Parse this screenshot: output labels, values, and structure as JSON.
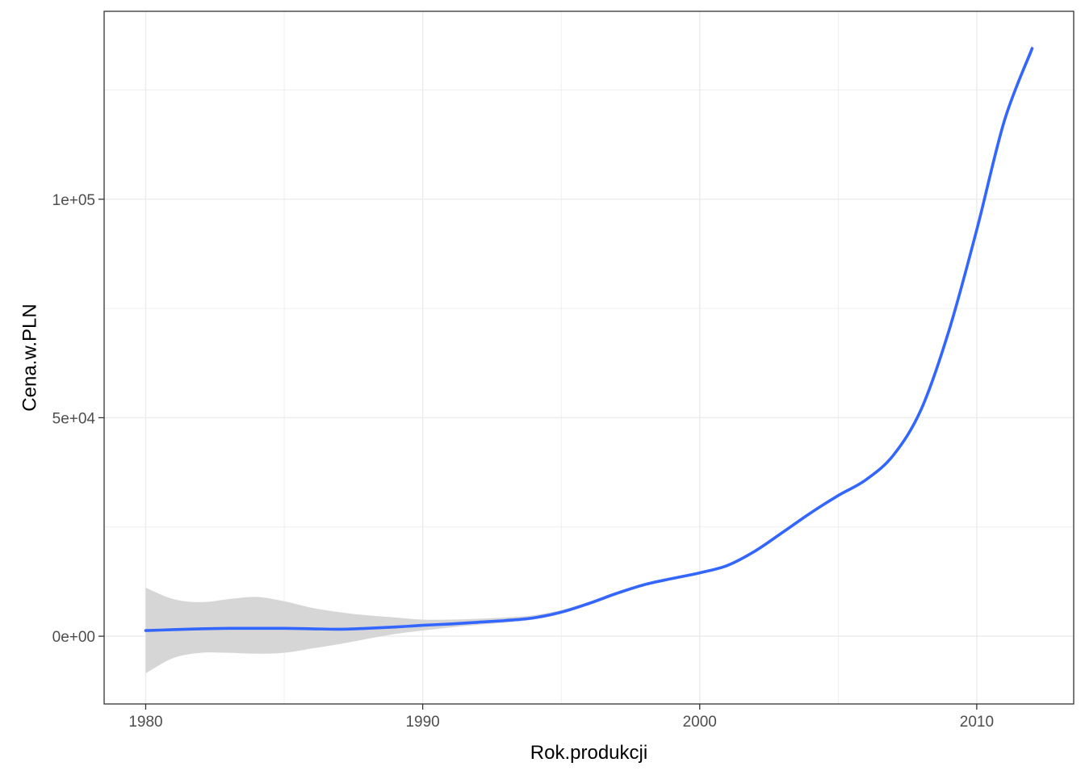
{
  "chart_data": {
    "type": "line",
    "title": "",
    "xlabel": "Rok.produkcji",
    "ylabel": "Cena.w.PLN",
    "xlim": [
      1978.5,
      2013.5
    ],
    "ylim": [
      -15500,
      143000
    ],
    "x_ticks": [
      1980,
      1990,
      2000,
      2010
    ],
    "x_tick_labels": [
      "1980",
      "1990",
      "2000",
      "2010"
    ],
    "x_minor": [
      1985,
      1995,
      2005
    ],
    "y_ticks": [
      0,
      50000,
      100000
    ],
    "y_tick_labels": [
      "0e+00",
      "5e+04",
      "1e+05"
    ],
    "y_minor": [
      25000,
      75000,
      125000
    ],
    "grid": true,
    "legend": "none",
    "colors": {
      "line": "#3366ff",
      "ribbon": "#d6d6d6",
      "grid": "#ebebeb",
      "panel_border": "#333333"
    },
    "series": [
      {
        "x": [
          1980,
          1981,
          1982,
          1983,
          1984,
          1985,
          1986,
          1987,
          1988,
          1989,
          1990,
          1991,
          1992,
          1993,
          1994,
          1995,
          1996,
          1997,
          1998,
          1999,
          2000,
          2001,
          2002,
          2003,
          2004,
          2005,
          2006,
          2007,
          2008,
          2009,
          2010,
          2011,
          2012
        ],
        "y": [
          1300,
          1500,
          1700,
          1800,
          1800,
          1800,
          1700,
          1600,
          1800,
          2100,
          2500,
          2800,
          3200,
          3600,
          4200,
          5500,
          7500,
          9800,
          11800,
          13200,
          14500,
          16200,
          19500,
          23800,
          28200,
          32200,
          35800,
          41500,
          52000,
          70000,
          93000,
          118000,
          134500
        ],
        "ci_lower": [
          -8500,
          -5000,
          -3800,
          -3800,
          -4000,
          -3800,
          -2800,
          -1800,
          -600,
          500,
          1300,
          2000,
          2600,
          3100,
          3800,
          5100,
          7100,
          9400,
          11500,
          12900,
          14200,
          15900,
          19200,
          23500,
          27900,
          31900,
          35500,
          41200,
          51700,
          69600,
          92500,
          117300,
          133500
        ],
        "ci_upper": [
          11100,
          8500,
          7800,
          8500,
          9000,
          8000,
          6500,
          5500,
          4800,
          4300,
          3800,
          3800,
          4000,
          4300,
          4800,
          6000,
          7900,
          10200,
          12100,
          13500,
          14800,
          16500,
          19800,
          24100,
          28500,
          32500,
          36100,
          41800,
          52300,
          70400,
          93500,
          118700,
          135500
        ]
      }
    ]
  }
}
